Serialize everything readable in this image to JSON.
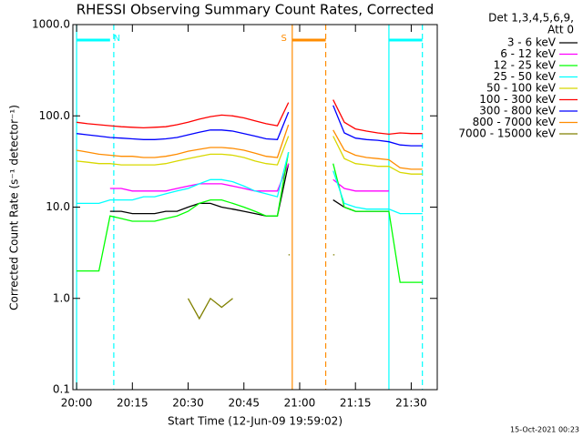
{
  "chart_data": {
    "type": "line",
    "title": "RHESSI Observing Summary Count Rates, Corrected",
    "xlabel": "Start Time (12-Jun-09 19:59:02)",
    "ylabel": "Corrected Count Rate (s⁻¹ detector⁻¹)",
    "legend_title": [
      "Det 1,3,4,5,6,9,",
      "Att 0"
    ],
    "footer": "15-Oct-2021 00:23",
    "log_y": true,
    "xlim": [
      "19:59",
      "21:37"
    ],
    "xticks": [
      "20:00",
      "20:15",
      "20:30",
      "20:45",
      "21:00",
      "21:15",
      "21:30"
    ],
    "ylim": [
      0.1,
      1000
    ],
    "yticks": [
      0.1,
      {
        "value": 1,
        "label": "1.0"
      },
      {
        "value": 10,
        "label": "10.0"
      },
      {
        "value": 100,
        "label": "100.0"
      },
      {
        "value": 1000,
        "label": "1000.0"
      }
    ],
    "x": [
      "20:00",
      "20:03",
      "20:06",
      "20:09",
      "20:12",
      "20:15",
      "20:18",
      "20:21",
      "20:24",
      "20:27",
      "20:30",
      "20:33",
      "20:36",
      "20:39",
      "20:42",
      "20:45",
      "20:48",
      "20:51",
      "20:54",
      "20:57",
      "21:00",
      "21:03",
      "21:06",
      "21:09",
      "21:12",
      "21:15",
      "21:18",
      "21:21",
      "21:24",
      "21:27",
      "21:30",
      "21:33"
    ],
    "series": [
      {
        "name": "3 - 6 keV",
        "color": "#000000",
        "values": [
          null,
          null,
          null,
          9,
          9,
          8.5,
          8.5,
          8.5,
          9,
          9,
          10,
          11,
          11,
          10,
          9.5,
          9,
          8.5,
          8,
          8,
          30,
          null,
          null,
          null,
          12,
          10,
          9,
          9,
          9,
          9,
          null,
          null,
          null
        ]
      },
      {
        "name": "6 - 12 keV",
        "color": "#ff00ff",
        "values": [
          null,
          null,
          null,
          16,
          16,
          15,
          15,
          15,
          15,
          16,
          17,
          18,
          18,
          18,
          17,
          16,
          15,
          15,
          15,
          30,
          null,
          null,
          null,
          20,
          16,
          15,
          15,
          15,
          15,
          null,
          null,
          null
        ]
      },
      {
        "name": "12 - 25 keV",
        "color": "#00ff00",
        "values": [
          2,
          2,
          2,
          8,
          7.5,
          7,
          7,
          7,
          7.5,
          8,
          9,
          11,
          12,
          12,
          11,
          10,
          9,
          8,
          8,
          40,
          null,
          null,
          null,
          30,
          10,
          9,
          9,
          9,
          9,
          1.5,
          1.5,
          1.5
        ]
      },
      {
        "name": "25 - 50 keV",
        "color": "#00ffff",
        "values": [
          11,
          11,
          11,
          12,
          12,
          12,
          13,
          13,
          14,
          15,
          16,
          18,
          20,
          20,
          19,
          17,
          15,
          14,
          13,
          40,
          null,
          null,
          null,
          25,
          11,
          10,
          9.5,
          9.5,
          9.5,
          8.5,
          8.5,
          8.5
        ]
      },
      {
        "name": "50 - 100 keV",
        "color": "#d8d800",
        "values": [
          32,
          31,
          30,
          30,
          29,
          29,
          29,
          29,
          30,
          32,
          34,
          36,
          38,
          38,
          37,
          35,
          32,
          30,
          29,
          60,
          null,
          null,
          null,
          60,
          34,
          30,
          29,
          28,
          28,
          24,
          23,
          23
        ]
      },
      {
        "name": "100 - 300 keV",
        "color": "#ff0000",
        "values": [
          85,
          82,
          80,
          78,
          76,
          75,
          74,
          75,
          76,
          80,
          85,
          92,
          98,
          102,
          100,
          95,
          88,
          82,
          78,
          140,
          null,
          null,
          null,
          150,
          85,
          72,
          68,
          65,
          63,
          65,
          64,
          64
        ]
      },
      {
        "name": "300 - 800 keV",
        "color": "#0000ff",
        "values": [
          64,
          62,
          60,
          58,
          57,
          56,
          55,
          55,
          56,
          58,
          62,
          66,
          70,
          70,
          68,
          64,
          60,
          56,
          55,
          110,
          null,
          null,
          null,
          130,
          65,
          57,
          55,
          54,
          52,
          48,
          47,
          47
        ]
      },
      {
        "name": "800 - 7000 keV",
        "color": "#ff8c00",
        "values": [
          42,
          40,
          38,
          37,
          36,
          36,
          35,
          35,
          36,
          38,
          41,
          43,
          45,
          45,
          44,
          42,
          39,
          36,
          35,
          80,
          null,
          null,
          null,
          70,
          42,
          37,
          35,
          34,
          33,
          27,
          26,
          26
        ]
      },
      {
        "name": "7000 - 15000 keV",
        "color": "#808000",
        "values": [
          null,
          null,
          null,
          null,
          null,
          null,
          null,
          null,
          null,
          null,
          1,
          0.6,
          1,
          0.8,
          1,
          null,
          null,
          null,
          null,
          3,
          null,
          null,
          null,
          3,
          null,
          null,
          null,
          null,
          null,
          null,
          null,
          null
        ]
      }
    ],
    "markers": [
      {
        "x": "20:00",
        "color": "#00ffff",
        "style": "solid"
      },
      {
        "x": "20:10",
        "color": "#00ffff",
        "style": "dashed"
      },
      {
        "x": "20:58",
        "color": "#ff8c00",
        "style": "solid"
      },
      {
        "x": "21:07",
        "color": "#ff8c00",
        "style": "dashed"
      },
      {
        "x": "21:24",
        "color": "#00ffff",
        "style": "solid"
      },
      {
        "x": "21:33",
        "color": "#00ffff",
        "style": "dashed"
      }
    ],
    "flags": [
      {
        "label": "N",
        "color": "#00ffff",
        "start": "20:00",
        "end": "20:09"
      },
      {
        "label": "S",
        "color": "#ff8c00",
        "start": "20:58",
        "end": "21:07"
      },
      {
        "color": "#00ffff",
        "start": "21:24",
        "end": "21:33"
      }
    ]
  }
}
